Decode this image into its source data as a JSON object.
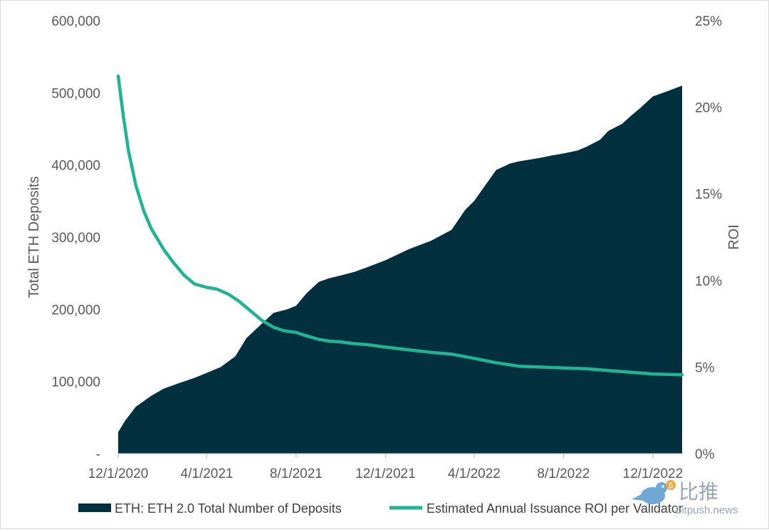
{
  "chart_data": {
    "type": "area+line",
    "xlabel": "",
    "ylabel": "Total ETH Deposits",
    "y2label": "ROI",
    "x_tick_labels": [
      "12/1/2020",
      "4/1/2021",
      "8/1/2021",
      "12/1/2021",
      "4/1/2022",
      "8/1/2022",
      "12/1/2022"
    ],
    "x_tick_values": [
      "2020-12-01",
      "2021-04-01",
      "2021-08-01",
      "2021-12-01",
      "2022-04-01",
      "2022-08-01",
      "2022-12-01"
    ],
    "xlim": [
      "2020-12-01",
      "2023-01-10"
    ],
    "y_tick_labels": [
      "-",
      "100,000",
      "200,000",
      "300,000",
      "400,000",
      "500,000",
      "600,000"
    ],
    "y_tick_values": [
      0,
      100000,
      200000,
      300000,
      400000,
      500000,
      600000
    ],
    "ylim": [
      0,
      600000
    ],
    "y2_tick_labels": [
      "0%",
      "5%",
      "10%",
      "15%",
      "20%",
      "25%"
    ],
    "y2_tick_values": [
      0,
      5,
      10,
      15,
      20,
      25
    ],
    "y2lim": [
      0,
      25
    ],
    "grid": false,
    "legend_position": "bottom",
    "series": [
      {
        "name": "ETH: ETH 2.0 Total Number of Deposits",
        "type": "area",
        "axis": "left",
        "color": "#02303f",
        "x": [
          "2020-12-01",
          "2020-12-10",
          "2020-12-25",
          "2021-01-15",
          "2021-02-01",
          "2021-02-20",
          "2021-03-15",
          "2021-04-01",
          "2021-04-20",
          "2021-05-10",
          "2021-05-25",
          "2021-06-15",
          "2021-07-01",
          "2021-07-20",
          "2021-08-01",
          "2021-08-15",
          "2021-09-01",
          "2021-09-15",
          "2021-10-01",
          "2021-10-20",
          "2021-11-05",
          "2021-12-01",
          "2022-01-01",
          "2022-02-01",
          "2022-03-01",
          "2022-03-20",
          "2022-04-01",
          "2022-05-01",
          "2022-05-20",
          "2022-06-01",
          "2022-07-01",
          "2022-07-15",
          "2022-08-01",
          "2022-08-20",
          "2022-09-01",
          "2022-09-20",
          "2022-10-01",
          "2022-10-20",
          "2022-11-01",
          "2022-11-15",
          "2022-12-01",
          "2022-12-15",
          "2023-01-10"
        ],
        "values": [
          30000,
          45000,
          65000,
          80000,
          90000,
          97000,
          105000,
          112000,
          120000,
          135000,
          160000,
          180000,
          195000,
          200000,
          205000,
          222000,
          238000,
          243000,
          247000,
          252000,
          258000,
          268000,
          283000,
          295000,
          310000,
          338000,
          350000,
          393000,
          402000,
          405000,
          410000,
          413000,
          416000,
          420000,
          425000,
          435000,
          447000,
          457000,
          468000,
          480000,
          495000,
          500000,
          510000
        ]
      },
      {
        "name": "Estimated Annual Issuance ROI per Validator",
        "type": "line",
        "axis": "right",
        "color": "#1fb594",
        "x": [
          "2020-12-01",
          "2020-12-08",
          "2020-12-15",
          "2020-12-25",
          "2021-01-05",
          "2021-01-15",
          "2021-02-01",
          "2021-02-15",
          "2021-03-01",
          "2021-03-15",
          "2021-04-01",
          "2021-04-15",
          "2021-05-01",
          "2021-05-15",
          "2021-06-01",
          "2021-06-15",
          "2021-07-01",
          "2021-07-15",
          "2021-08-01",
          "2021-08-15",
          "2021-09-01",
          "2021-09-15",
          "2021-10-01",
          "2021-10-20",
          "2021-11-05",
          "2021-12-01",
          "2022-01-01",
          "2022-02-01",
          "2022-03-01",
          "2022-04-01",
          "2022-05-01",
          "2022-06-01",
          "2022-07-01",
          "2022-08-01",
          "2022-09-01",
          "2022-10-01",
          "2022-11-01",
          "2022-12-01",
          "2023-01-10"
        ],
        "values": [
          21.8,
          19.5,
          17.5,
          15.5,
          14.0,
          13.0,
          11.8,
          11.0,
          10.3,
          9.8,
          9.6,
          9.5,
          9.2,
          8.8,
          8.2,
          7.7,
          7.3,
          7.1,
          7.0,
          6.8,
          6.6,
          6.5,
          6.45,
          6.35,
          6.3,
          6.15,
          6.0,
          5.85,
          5.75,
          5.5,
          5.25,
          5.05,
          5.0,
          4.95,
          4.9,
          4.8,
          4.7,
          4.6,
          4.55
        ]
      }
    ]
  },
  "watermark": {
    "cn_text": "比推",
    "url_text": "bitpush.news"
  }
}
